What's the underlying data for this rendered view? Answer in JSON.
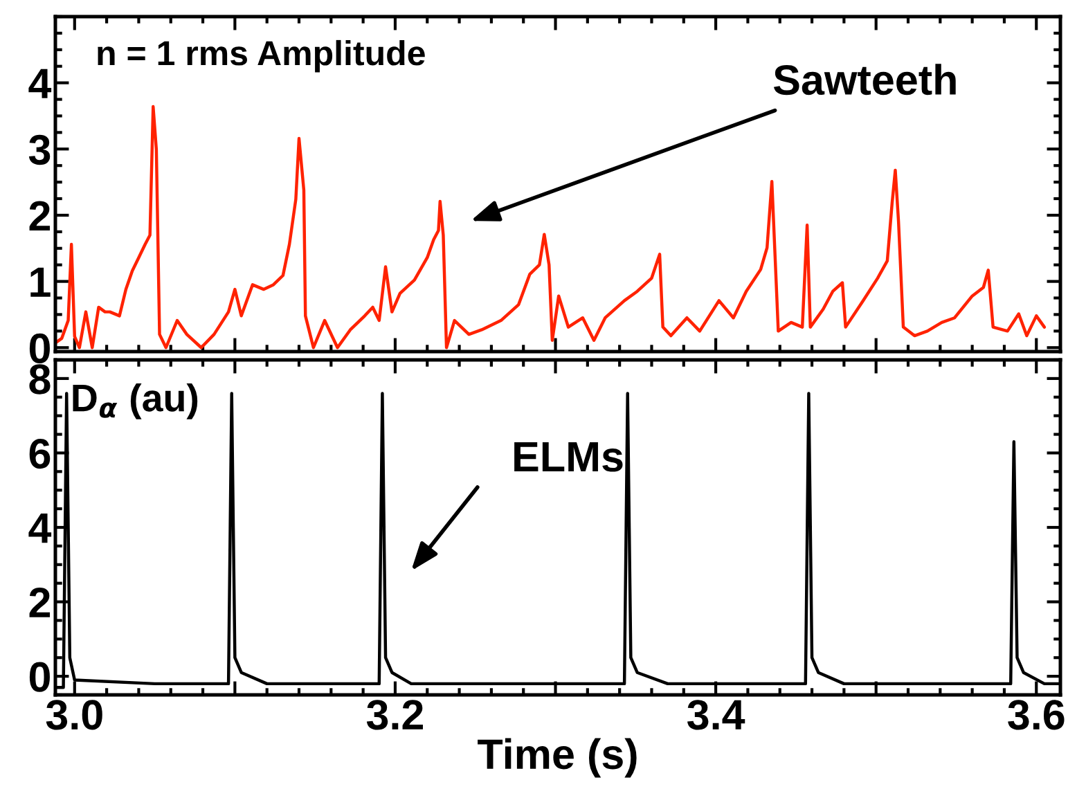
{
  "chart_data": [
    {
      "type": "line",
      "xlim": [
        2.988,
        3.615
      ],
      "xticks": [
        {
          "value": 3.0,
          "label": null
        },
        {
          "value": 3.1,
          "label": null
        },
        {
          "value": 3.2,
          "label": null
        },
        {
          "value": 3.3,
          "label": null
        },
        {
          "value": 3.4,
          "label": null
        },
        {
          "value": 3.5,
          "label": null
        },
        {
          "value": 3.6,
          "label": null
        }
      ],
      "ylim": [
        -0.06,
        5.0
      ],
      "yticks": [
        0,
        1,
        2,
        3,
        4
      ],
      "tick_labels": "y",
      "annotations": [
        "n = 1 rms Amplitude",
        "Sawteeth"
      ],
      "series": [
        {
          "color": "#ff2200",
          "x": [
            2.988,
            2.992,
            2.996,
            2.998,
            3.0,
            3.003,
            3.007,
            3.011,
            3.015,
            3.019,
            3.022,
            3.028,
            3.032,
            3.036,
            3.04,
            3.044,
            3.047,
            3.049,
            3.051,
            3.053,
            3.057,
            3.064,
            3.07,
            3.079,
            3.087,
            3.096,
            3.1,
            3.104,
            3.111,
            3.118,
            3.124,
            3.13,
            3.134,
            3.138,
            3.14,
            3.143,
            3.144,
            3.149,
            3.156,
            3.164,
            3.172,
            3.181,
            3.186,
            3.19,
            3.194,
            3.198,
            3.203,
            3.212,
            3.22,
            3.224,
            3.227,
            3.228,
            3.23,
            3.232,
            3.237,
            3.246,
            3.254,
            3.266,
            3.277,
            3.284,
            3.29,
            3.293,
            3.296,
            3.298,
            3.302,
            3.308,
            3.317,
            3.324,
            3.331,
            3.343,
            3.351,
            3.36,
            3.365,
            3.367,
            3.372,
            3.382,
            3.39,
            3.402,
            3.411,
            3.419,
            3.428,
            3.432,
            3.435,
            3.437,
            3.439,
            3.447,
            3.454,
            3.457,
            3.459,
            3.467,
            3.473,
            3.479,
            3.481,
            3.492,
            3.501,
            3.507,
            3.51,
            3.512,
            3.514,
            3.517,
            3.524,
            3.532,
            3.541,
            3.549,
            3.56,
            3.567,
            3.57,
            3.573,
            3.582,
            3.589,
            3.594,
            3.6,
            3.605
          ],
          "values": [
            0.07,
            0.14,
            0.41,
            1.56,
            0.17,
            0,
            0.54,
            0,
            0.61,
            0.54,
            0.54,
            0.48,
            0.88,
            1.16,
            1.36,
            1.56,
            1.7,
            3.64,
            2.99,
            0.2,
            0,
            0.41,
            0.2,
            0,
            0.2,
            0.54,
            0.88,
            0.48,
            0.95,
            0.88,
            0.95,
            1.09,
            1.56,
            2.24,
            3.16,
            2.38,
            0.48,
            0,
            0.41,
            0,
            0.27,
            0.48,
            0.61,
            0.41,
            1.22,
            0.54,
            0.82,
            1.02,
            1.36,
            1.63,
            1.77,
            2.21,
            1.7,
            0,
            0.41,
            0.2,
            0.27,
            0.41,
            0.65,
            1.11,
            1.25,
            1.71,
            1.25,
            0.11,
            0.78,
            0.31,
            0.45,
            0.11,
            0.45,
            0.71,
            0.85,
            1.05,
            1.41,
            0.31,
            0.18,
            0.45,
            0.25,
            0.71,
            0.45,
            0.85,
            1.18,
            1.51,
            2.51,
            1.38,
            0.25,
            0.38,
            0.31,
            1.85,
            0.31,
            0.58,
            0.85,
            0.98,
            0.31,
            0.71,
            1.05,
            1.31,
            2.18,
            2.68,
            1.91,
            0.31,
            0.18,
            0.25,
            0.38,
            0.45,
            0.78,
            0.91,
            1.17,
            0.31,
            0.25,
            0.51,
            0.18,
            0.48,
            0.31
          ]
        }
      ]
    },
    {
      "type": "line",
      "xlim": [
        2.988,
        3.615
      ],
      "xticks": [
        {
          "value": 3.0,
          "label": "3.0"
        },
        {
          "value": 3.1,
          "label": null
        },
        {
          "value": 3.2,
          "label": "3.2"
        },
        {
          "value": 3.3,
          "label": null
        },
        {
          "value": 3.4,
          "label": "3.4"
        },
        {
          "value": 3.5,
          "label": null
        },
        {
          "value": 3.6,
          "label": "3.6"
        }
      ],
      "ylim": [
        -0.5,
        8.5
      ],
      "yticks": [
        0,
        2,
        4,
        6,
        8
      ],
      "xlabel": "Time (s)",
      "annotations": [
        "D$_{α}$ (au)",
        "ELMs"
      ],
      "series": [
        {
          "color": "#000000",
          "x": [
            2.988,
            2.993,
            2.995,
            2.997,
            3.0,
            3.05,
            3.096,
            3.098,
            3.1,
            3.104,
            3.12,
            3.19,
            3.192,
            3.194,
            3.198,
            3.21,
            3.343,
            3.345,
            3.347,
            3.351,
            3.37,
            3.456,
            3.458,
            3.46,
            3.464,
            3.48,
            3.584,
            3.586,
            3.588,
            3.592,
            3.605,
            3.615
          ],
          "values": [
            -0.3,
            -0.3,
            7.6,
            0.5,
            -0.1,
            -0.2,
            -0.2,
            7.6,
            0.5,
            0.1,
            -0.2,
            -0.2,
            7.6,
            0.5,
            0.1,
            -0.2,
            -0.2,
            7.6,
            0.5,
            0.1,
            -0.2,
            -0.2,
            7.6,
            0.5,
            0.1,
            -0.2,
            -0.2,
            6.3,
            0.5,
            0.1,
            -0.2,
            -0.2
          ]
        }
      ]
    }
  ]
}
